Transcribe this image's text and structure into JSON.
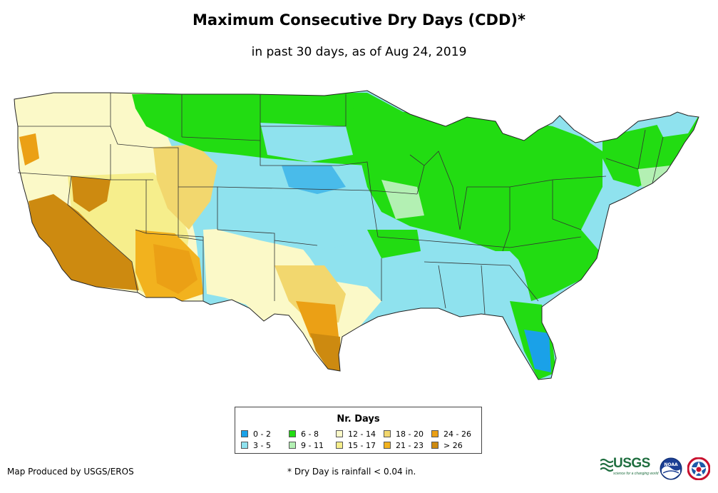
{
  "map": {
    "title": "Maximum Consecutive Dry Days (CDD)*",
    "subtitle": "in past 30 days, as of Aug 24, 2019",
    "region": "contiguous-united-states"
  },
  "legend": {
    "title": "Nr. Days",
    "items": [
      {
        "label": "0 - 2",
        "color": "#1aa1e8"
      },
      {
        "label": "3 - 5",
        "color": "#8fe2ee"
      },
      {
        "label": "6 - 8",
        "color": "#22dc12"
      },
      {
        "label": "9 - 11",
        "color": "#b3f0b3"
      },
      {
        "label": "12 - 14",
        "color": "#fbf9c8"
      },
      {
        "label": "15 - 17",
        "color": "#f6ee8c"
      },
      {
        "label": "18 - 20",
        "color": "#f2d76e"
      },
      {
        "label": "21 - 23",
        "color": "#f2b21e"
      },
      {
        "label": "24 - 26",
        "color": "#eba015"
      },
      {
        "label": "> 26",
        "color": "#cd8a10"
      }
    ]
  },
  "footer": {
    "credit": "Map Produced by USGS/EROS",
    "footnote": "* Dry Day is rainfall < 0.04 in."
  },
  "logos": {
    "usgs_text": "USGS",
    "usgs_tagline": "science for a changing world",
    "noaa_text": "NOAA"
  }
}
